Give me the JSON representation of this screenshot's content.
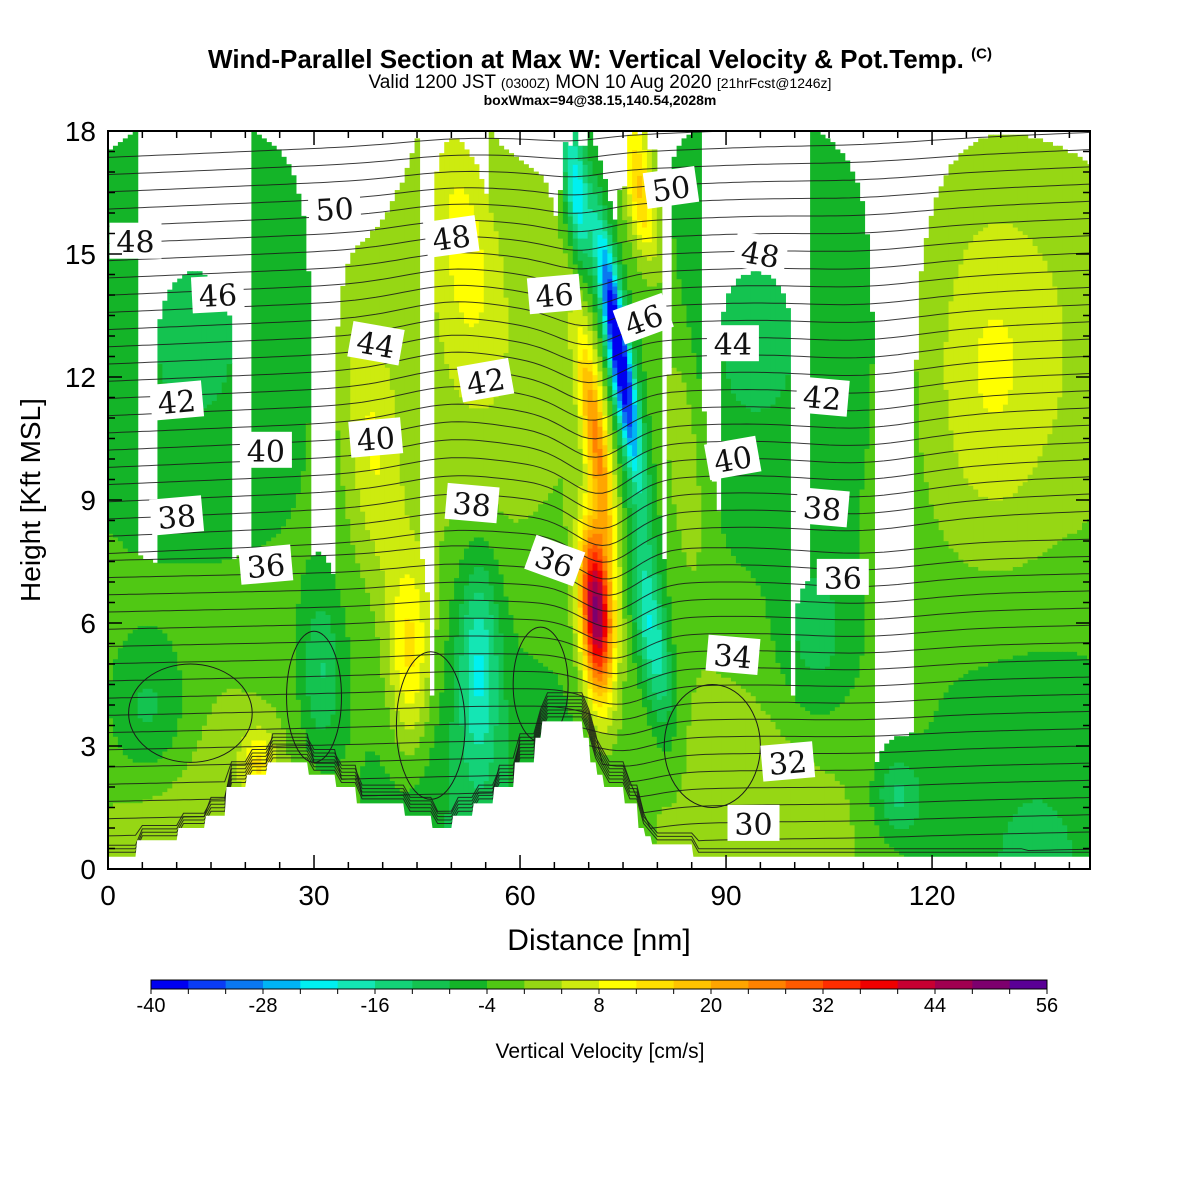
{
  "header": {
    "title": "Wind-Parallel Section at Max W: Vertical Velocity & Pot.Temp.",
    "title_mark": "(C)",
    "valid_prefix": "Valid 1200 JST",
    "valid_utc": "(0300Z)",
    "valid_date": "MON 10 Aug 2020",
    "valid_fcst": "[21hrFcst@1246z]",
    "box_info": "boxWmax=94@38.15,140.54,2028m"
  },
  "chart_data": {
    "type": "heatmap",
    "xlabel": "Distance [nm]",
    "ylabel": "Height [Kft MSL]",
    "xlim": [
      0,
      143
    ],
    "ylim": [
      0,
      18
    ],
    "x_ticks": [
      0,
      30,
      60,
      90,
      120
    ],
    "y_ticks": [
      0,
      3,
      6,
      9,
      12,
      15,
      18
    ],
    "x_tick_labels": [
      "0",
      "30",
      "60",
      "90",
      "120"
    ],
    "y_tick_labels": [
      "0",
      "3",
      "6",
      "9",
      "12",
      "15",
      "18"
    ],
    "colorbar": {
      "label": "Vertical Velocity [cm/s]",
      "min": -40,
      "max": 56,
      "step": 4,
      "tick_values": [
        -40,
        -28,
        -16,
        -4,
        8,
        20,
        32,
        44,
        56
      ],
      "tick_labels": [
        "-40",
        "-28",
        "-16",
        "-4",
        "8",
        "20",
        "32",
        "44",
        "56"
      ],
      "colors": [
        "#0000f0",
        "#0a3cf5",
        "#0a78f0",
        "#00b4f5",
        "#00f0f0",
        "#14e6b4",
        "#14d278",
        "#14c350",
        "#14b428",
        "#50c814",
        "#96d714",
        "#cdeb0f",
        "#ffff00",
        "#ffe100",
        "#ffc300",
        "#ffa500",
        "#ff8200",
        "#ff5a00",
        "#ff2d00",
        "#f00000",
        "#c80032",
        "#a00050",
        "#7d006e",
        "#5a0096"
      ]
    },
    "theta_contour_labels": [
      {
        "value": "48",
        "x": 4,
        "y": 15.3,
        "angle": 0
      },
      {
        "value": "50",
        "x": 33,
        "y": 16.1,
        "angle": -3
      },
      {
        "value": "46",
        "x": 16,
        "y": 14.0,
        "angle": -3
      },
      {
        "value": "48",
        "x": 50,
        "y": 15.4,
        "angle": -8
      },
      {
        "value": "46",
        "x": 65,
        "y": 14.0,
        "angle": -5
      },
      {
        "value": "50",
        "x": 82,
        "y": 16.6,
        "angle": -8
      },
      {
        "value": "48",
        "x": 95,
        "y": 15.0,
        "angle": 10
      },
      {
        "value": "46",
        "x": 78,
        "y": 13.4,
        "angle": -20
      },
      {
        "value": "44",
        "x": 39,
        "y": 12.8,
        "angle": 10
      },
      {
        "value": "42",
        "x": 55,
        "y": 11.9,
        "angle": -10
      },
      {
        "value": "44",
        "x": 91,
        "y": 12.8,
        "angle": 0
      },
      {
        "value": "42",
        "x": 10,
        "y": 11.4,
        "angle": -5
      },
      {
        "value": "40",
        "x": 23,
        "y": 10.2,
        "angle": 0
      },
      {
        "value": "40",
        "x": 39,
        "y": 10.5,
        "angle": -5
      },
      {
        "value": "42",
        "x": 104,
        "y": 11.5,
        "angle": 5
      },
      {
        "value": "40",
        "x": 91,
        "y": 10.0,
        "angle": -10
      },
      {
        "value": "38",
        "x": 10,
        "y": 8.6,
        "angle": -5
      },
      {
        "value": "38",
        "x": 53,
        "y": 8.9,
        "angle": 5
      },
      {
        "value": "38",
        "x": 104,
        "y": 8.8,
        "angle": 5
      },
      {
        "value": "36",
        "x": 23,
        "y": 7.4,
        "angle": -5
      },
      {
        "value": "36",
        "x": 65,
        "y": 7.5,
        "angle": 20
      },
      {
        "value": "36",
        "x": 107,
        "y": 7.1,
        "angle": 0
      },
      {
        "value": "34",
        "x": 91,
        "y": 5.2,
        "angle": 5
      },
      {
        "value": "32",
        "x": 99,
        "y": 2.6,
        "angle": -5
      },
      {
        "value": "30",
        "x": 94,
        "y": 1.1,
        "angle": 0
      }
    ]
  }
}
